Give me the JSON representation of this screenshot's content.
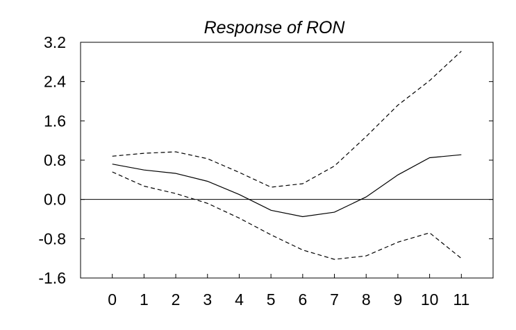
{
  "chart_data": {
    "type": "line",
    "title": "Response of RON",
    "xlabel": "",
    "ylabel": "",
    "x": [
      0,
      1,
      2,
      3,
      4,
      5,
      6,
      7,
      8,
      9,
      10,
      11
    ],
    "x_tick_labels": [
      "0",
      "1",
      "2",
      "3",
      "4",
      "5",
      "6",
      "7",
      "8",
      "9",
      "10",
      "11"
    ],
    "y_tick_values": [
      3.2,
      2.4,
      1.6,
      0.8,
      0.0,
      -0.8,
      -1.6
    ],
    "y_tick_labels": [
      "3.2",
      "2.4",
      "1.6",
      "0.8",
      "0.0",
      "-0.8",
      "-1.6"
    ],
    "ylim": [
      -1.6,
      3.2
    ],
    "xlim": [
      -1,
      12
    ],
    "grid": false,
    "legend": "none",
    "zero_line": true,
    "series": [
      {
        "style": "solid",
        "color": "#000000",
        "values": [
          0.72,
          0.6,
          0.53,
          0.37,
          0.1,
          -0.22,
          -0.35,
          -0.26,
          0.05,
          0.5,
          0.85,
          0.91
        ]
      },
      {
        "style": "dashed",
        "color": "#000000",
        "values": [
          0.88,
          0.94,
          0.97,
          0.83,
          0.55,
          0.25,
          0.32,
          0.68,
          1.28,
          1.92,
          2.42,
          3.02
        ]
      },
      {
        "style": "dashed",
        "color": "#000000",
        "values": [
          0.56,
          0.27,
          0.12,
          -0.08,
          -0.38,
          -0.72,
          -1.03,
          -1.22,
          -1.15,
          -0.87,
          -0.68,
          -1.2
        ]
      }
    ]
  }
}
